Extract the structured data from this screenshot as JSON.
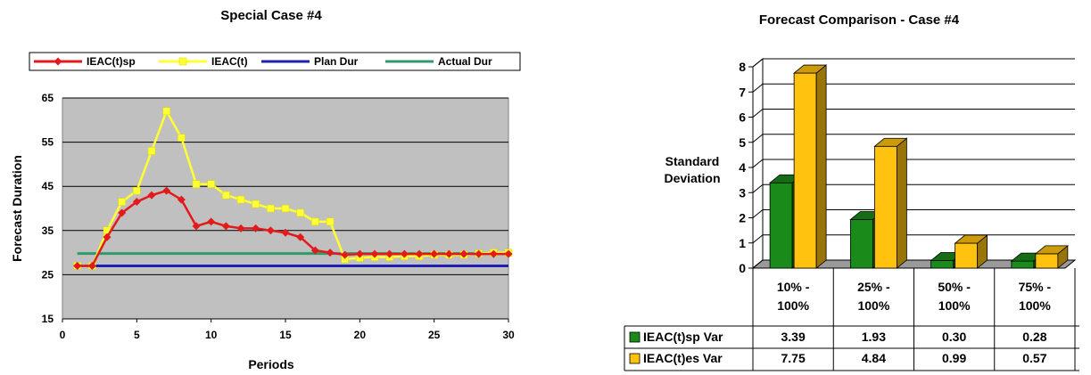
{
  "chart_data": [
    {
      "type": "line",
      "title": "Special Case #4",
      "xlabel": "Periods",
      "ylabel": "Forecast Duration",
      "xlim": [
        0,
        30
      ],
      "ylim": [
        15,
        65
      ],
      "xticks": [
        "0",
        "5",
        "10",
        "15",
        "20",
        "25",
        "30"
      ],
      "yticks": [
        "15",
        "25",
        "35",
        "45",
        "55",
        "65"
      ],
      "grid": true,
      "legend_position": "top",
      "series": [
        {
          "name": "IEAC(t)sp",
          "color": "#e31a1c",
          "marker": "diamond",
          "x": [
            1,
            2,
            3,
            4,
            5,
            6,
            7,
            8,
            9,
            10,
            11,
            12,
            13,
            14,
            15,
            16,
            17,
            18,
            19,
            20,
            21,
            22,
            23,
            24,
            25,
            26,
            27,
            28,
            29,
            30
          ],
          "values": [
            27,
            27,
            33.5,
            39,
            41.5,
            43,
            44,
            42,
            36,
            37,
            36,
            35.5,
            35.5,
            35,
            34.5,
            33.5,
            30.5,
            30,
            29.5,
            29.7,
            29.7,
            29.7,
            29.7,
            29.7,
            29.7,
            29.7,
            29.7,
            29.7,
            29.7,
            29.7
          ]
        },
        {
          "name": "IEAC(t)",
          "color": "#ffff33",
          "marker": "square",
          "x": [
            1,
            2,
            3,
            4,
            5,
            6,
            7,
            8,
            9,
            10,
            11,
            12,
            13,
            14,
            15,
            16,
            17,
            18,
            19,
            20,
            21,
            22,
            23,
            24,
            25,
            26,
            27,
            28,
            29,
            30
          ],
          "values": [
            27,
            27,
            35,
            41.5,
            44,
            53,
            62,
            56,
            45.5,
            45.5,
            43,
            42,
            41,
            40,
            40,
            39,
            37,
            37,
            28.5,
            28.8,
            29,
            29,
            29.2,
            29.2,
            29.5,
            29.5,
            29.5,
            29.8,
            30,
            30
          ]
        },
        {
          "name": "Plan Dur",
          "color": "#1f1fb4",
          "marker": "none",
          "x": [
            1,
            30
          ],
          "values": [
            27,
            27
          ]
        },
        {
          "name": "Actual Dur",
          "color": "#2e9b6a",
          "marker": "none",
          "x": [
            1,
            30
          ],
          "values": [
            29.8,
            29.8
          ]
        }
      ]
    },
    {
      "type": "bar",
      "title": "Forecast Comparison - Case #4",
      "ylabel": "Standard\nDeviation",
      "ylim": [
        0,
        8
      ],
      "yticks": [
        "0",
        "1",
        "2",
        "3",
        "4",
        "5",
        "6",
        "7",
        "8"
      ],
      "grid": true,
      "categories": [
        "10% - 100%",
        "25% - 100%",
        "50% - 100%",
        "75% - 100%"
      ],
      "category_lines": [
        [
          "10% -",
          "100%"
        ],
        [
          "25% -",
          "100%"
        ],
        [
          "50% -",
          "100%"
        ],
        [
          "75% -",
          "100%"
        ]
      ],
      "series": [
        {
          "name": "IEAC(t)sp Var",
          "color": "#1a8a1a",
          "values": [
            3.39,
            1.93,
            0.3,
            0.28
          ]
        },
        {
          "name": "IEAC(t)es Var",
          "color": "#ffc20e",
          "values": [
            7.75,
            4.84,
            0.99,
            0.57
          ]
        }
      ],
      "table": [
        [
          "3.39",
          "1.93",
          "0.30",
          "0.28"
        ],
        [
          "7.75",
          "4.84",
          "0.99",
          "0.57"
        ]
      ]
    }
  ]
}
